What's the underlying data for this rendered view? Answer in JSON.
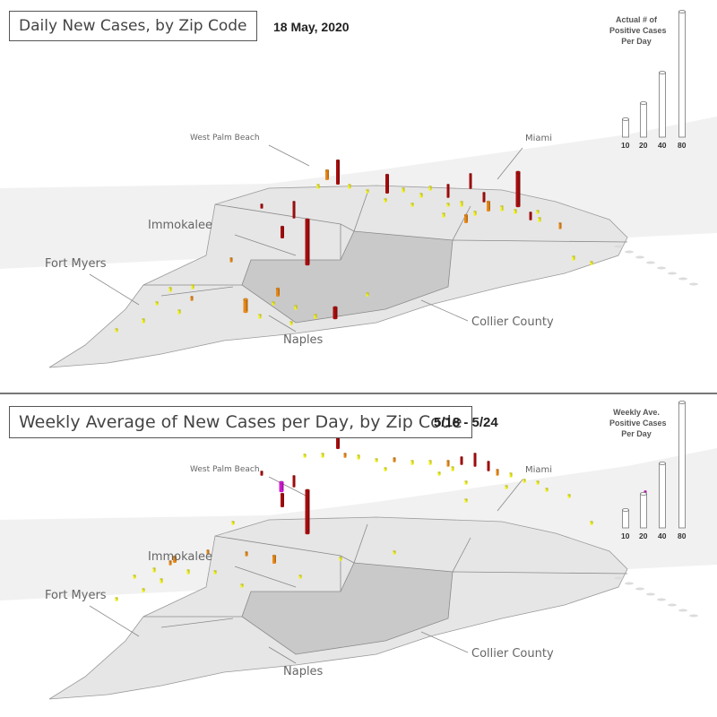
{
  "panels": [
    {
      "title": "Daily New Cases, by Zip Code",
      "date": "18 May, 2020",
      "legend": {
        "lines": [
          "Actual # of",
          "Positive Cases",
          "Per Day"
        ],
        "values": [
          "10",
          "20",
          "40",
          "80"
        ]
      },
      "labels": {
        "west_palm_beach": "West Palm Beach",
        "miami": "Miami",
        "immokalee": "Immokalee",
        "fort_myers": "Fort Myers",
        "collier_county": "Collier County",
        "naples": "Naples"
      }
    },
    {
      "title": "Weekly Average of New Cases per Day, by Zip Code",
      "date": "5/18 - 5/24",
      "legend": {
        "lines": [
          "Weekly Ave.",
          "Positive Cases",
          "Per Day"
        ],
        "values": [
          "10",
          "20",
          "40",
          "80"
        ]
      },
      "labels": {
        "west_palm_beach": "West Palm Beach",
        "miami": "Miami",
        "immokalee": "Immokalee",
        "fort_myers": "Fort Myers",
        "collier_county": "Collier County",
        "naples": "Naples"
      }
    }
  ],
  "colors": {
    "low": "#f2f21a",
    "mid": "#e88a1a",
    "high": "#a80d0d",
    "outlier": "#d11bd1",
    "land": "#e6e6e6",
    "collier": "#c9c9c9",
    "county_line": "#8a8a8a",
    "water_land_bg": "#f0f0f0"
  }
}
